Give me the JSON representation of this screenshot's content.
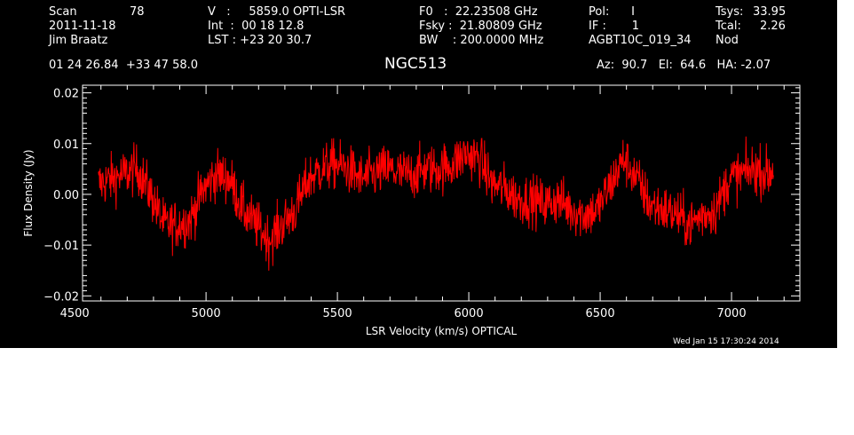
{
  "header": {
    "scan_label": "Scan",
    "scan_value": "78",
    "date": "2011-11-18",
    "observer": "Jim Braatz",
    "v_line": "V   :     5859.0 OPTI-LSR",
    "int_line": "Int  :  00 18 12.8",
    "lst_line": "LST : +23 20 30.7",
    "f0_line": "F0   :  22.23508 GHz",
    "fsky_line": "Fsky :  21.80809 GHz",
    "bw_line": "BW    : 200.0000 MHz",
    "pol_line": "Pol:      I",
    "if_line": "IF :       1",
    "project": "AGBT10C_019_34",
    "tsys_label": "Tsys:",
    "tsys_value": "33.95",
    "tcal_label": "Tcal:",
    "tcal_value": "2.26",
    "mode": "Nod",
    "coords": "01 24 26.84  +33 47 58.0",
    "source": "NGC513",
    "azel": "Az:  90.7   El:  64.6   HA: -2.07",
    "timestamp": "Wed Jan 15 17:30:24 2014"
  },
  "colors": {
    "background": "#000000",
    "axes": "#ffffff",
    "trace": "#ff0000"
  },
  "chart_data": {
    "type": "line",
    "title": "NGC513",
    "xlabel": "LSR Velocity (km/s) OPTICAL",
    "ylabel": "Flux Density (Jy)",
    "xlim": [
      4530,
      7260
    ],
    "ylim": [
      -0.021,
      0.0215
    ],
    "xticks": [
      4500,
      5000,
      5500,
      6000,
      6500,
      7000
    ],
    "xtick_labels": [
      "4500",
      "5000",
      "5500",
      "6000",
      "6500",
      "7000"
    ],
    "yticks": [
      -0.02,
      -0.01,
      0.0,
      0.01,
      0.02
    ],
    "ytick_labels": [
      "−0.02",
      "−0.01",
      "0.00",
      "0.01",
      "0.02"
    ],
    "grid": false,
    "series": [
      {
        "color": "#ff0000",
        "x": [
          4590,
          4640,
          4690,
          4740,
          4790,
          4840,
          4890,
          4940,
          4990,
          5040,
          5090,
          5140,
          5190,
          5240,
          5290,
          5340,
          5390,
          5440,
          5490,
          5540,
          5590,
          5640,
          5690,
          5740,
          5790,
          5840,
          5890,
          5940,
          5990,
          6040,
          6090,
          6140,
          6190,
          6240,
          6290,
          6340,
          6390,
          6440,
          6490,
          6540,
          6590,
          6640,
          6690,
          6740,
          6790,
          6840,
          6890,
          6940,
          6990,
          7040,
          7090,
          7140,
          7160
        ],
        "y": [
          0.002,
          0.003,
          0.004,
          0.005,
          0.0,
          -0.006,
          -0.006,
          -0.005,
          0.001,
          0.004,
          0.003,
          -0.003,
          -0.006,
          -0.009,
          -0.006,
          -0.003,
          0.003,
          0.005,
          0.006,
          0.005,
          0.003,
          0.004,
          0.005,
          0.004,
          0.004,
          0.005,
          0.005,
          0.006,
          0.008,
          0.007,
          0.002,
          0.001,
          -0.001,
          -0.001,
          -0.002,
          -0.001,
          -0.003,
          -0.004,
          -0.003,
          0.002,
          0.007,
          0.003,
          -0.002,
          -0.003,
          -0.004,
          -0.006,
          -0.004,
          -0.003,
          0.003,
          0.004,
          0.005,
          0.004,
          0.005
        ]
      }
    ]
  }
}
